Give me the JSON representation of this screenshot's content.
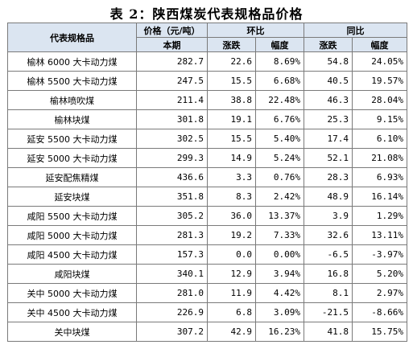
{
  "title": "表 2：陕西煤炭代表规格品价格",
  "header": {
    "col_name": "代表规格品",
    "col_price": "价格（元/吨）",
    "col_mom": "环比",
    "col_yoy": "同比",
    "sub_current": "本期",
    "sub_change": "涨跌",
    "sub_rate": "幅度"
  },
  "rows": [
    {
      "name": "榆林 6000 大卡动力煤",
      "price": "282.7",
      "mom_change": "22.6",
      "mom_rate": "8.69%",
      "yoy_change": "54.8",
      "yoy_rate": "24.05%"
    },
    {
      "name": "榆林 5500 大卡动力煤",
      "price": "247.5",
      "mom_change": "15.5",
      "mom_rate": "6.68%",
      "yoy_change": "40.5",
      "yoy_rate": "19.57%"
    },
    {
      "name": "榆林喷吹煤",
      "price": "211.4",
      "mom_change": "38.8",
      "mom_rate": "22.48%",
      "yoy_change": "46.3",
      "yoy_rate": "28.04%"
    },
    {
      "name": "榆林块煤",
      "price": "301.8",
      "mom_change": "19.1",
      "mom_rate": "6.76%",
      "yoy_change": "25.3",
      "yoy_rate": "9.15%"
    },
    {
      "name": "延安 5500 大卡动力煤",
      "price": "302.5",
      "mom_change": "15.5",
      "mom_rate": "5.40%",
      "yoy_change": "17.4",
      "yoy_rate": "6.10%"
    },
    {
      "name": "延安 5000 大卡动力煤",
      "price": "299.3",
      "mom_change": "14.9",
      "mom_rate": "5.24%",
      "yoy_change": "52.1",
      "yoy_rate": "21.08%"
    },
    {
      "name": "延安配焦精煤",
      "price": "436.6",
      "mom_change": "3.3",
      "mom_rate": "0.76%",
      "yoy_change": "28.3",
      "yoy_rate": "6.93%"
    },
    {
      "name": "延安块煤",
      "price": "351.8",
      "mom_change": "8.3",
      "mom_rate": "2.42%",
      "yoy_change": "48.9",
      "yoy_rate": "16.14%"
    },
    {
      "name": "咸阳 5500 大卡动力煤",
      "price": "305.2",
      "mom_change": "36.0",
      "mom_rate": "13.37%",
      "yoy_change": "3.9",
      "yoy_rate": "1.29%"
    },
    {
      "name": "咸阳 5000 大卡动力煤",
      "price": "281.3",
      "mom_change": "19.2",
      "mom_rate": "7.33%",
      "yoy_change": "32.6",
      "yoy_rate": "13.11%"
    },
    {
      "name": "咸阳 4500 大卡动力煤",
      "price": "157.3",
      "mom_change": "0.0",
      "mom_rate": "0.00%",
      "yoy_change": "-6.5",
      "yoy_rate": "-3.97%"
    },
    {
      "name": "咸阳块煤",
      "price": "340.1",
      "mom_change": "12.9",
      "mom_rate": "3.94%",
      "yoy_change": "16.8",
      "yoy_rate": "5.20%"
    },
    {
      "name": "关中 5000 大卡动力煤",
      "price": "281.0",
      "mom_change": "11.9",
      "mom_rate": "4.42%",
      "yoy_change": "8.1",
      "yoy_rate": "2.97%"
    },
    {
      "name": "关中 4500 大卡动力煤",
      "price": "226.9",
      "mom_change": "6.8",
      "mom_rate": "3.09%",
      "yoy_change": "-21.5",
      "yoy_rate": "-8.66%"
    },
    {
      "name": "关中块煤",
      "price": "307.2",
      "mom_change": "42.9",
      "mom_rate": "16.23%",
      "yoy_change": "41.8",
      "yoy_rate": "15.75%"
    }
  ]
}
